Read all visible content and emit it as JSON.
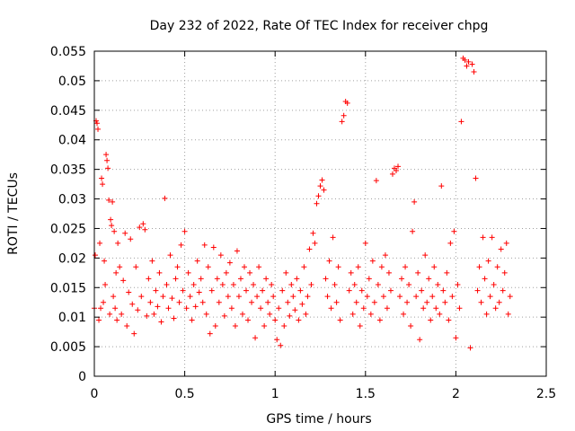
{
  "chart_data": {
    "type": "scatter",
    "title": "Day 232 of 2022, Rate Of TEC Index for receiver chpg",
    "xlabel": "GPS time / hours",
    "ylabel": "ROTI / TECUs",
    "xlim": [
      0,
      2.5
    ],
    "ylim": [
      0,
      0.055
    ],
    "x_ticks": [
      0,
      0.5,
      1,
      1.5,
      2,
      2.5
    ],
    "y_ticks": [
      0,
      0.005,
      0.01,
      0.015,
      0.02,
      0.025,
      0.03,
      0.035,
      0.04,
      0.045,
      0.05,
      0.055
    ],
    "x_tick_labels": [
      "0",
      "0.5",
      "1",
      "1.5",
      "2",
      "2.5"
    ],
    "y_tick_labels": [
      "0",
      "0.005",
      "0.01",
      "0.015",
      "0.02",
      "0.025",
      "0.03",
      "0.035",
      "0.04",
      "0.045",
      "0.05",
      "0.055"
    ],
    "grid": true,
    "marker": "+",
    "marker_color": "#ff0000",
    "series": [
      {
        "points": [
          [
            0.0,
            0.0115
          ],
          [
            0.005,
            0.0205
          ],
          [
            0.01,
            0.0432
          ],
          [
            0.015,
            0.0428
          ],
          [
            0.02,
            0.0418
          ],
          [
            0.025,
            0.0095
          ],
          [
            0.03,
            0.0225
          ],
          [
            0.035,
            0.0115
          ],
          [
            0.04,
            0.0335
          ],
          [
            0.045,
            0.0325
          ],
          [
            0.05,
            0.0125
          ],
          [
            0.055,
            0.0195
          ],
          [
            0.06,
            0.0155
          ],
          [
            0.065,
            0.0375
          ],
          [
            0.07,
            0.0365
          ],
          [
            0.075,
            0.0352
          ],
          [
            0.08,
            0.0298
          ],
          [
            0.085,
            0.0105
          ],
          [
            0.09,
            0.0265
          ],
          [
            0.095,
            0.0255
          ],
          [
            0.1,
            0.0295
          ],
          [
            0.105,
            0.0135
          ],
          [
            0.11,
            0.0245
          ],
          [
            0.115,
            0.0115
          ],
          [
            0.12,
            0.0175
          ],
          [
            0.125,
            0.0095
          ],
          [
            0.13,
            0.0225
          ],
          [
            0.14,
            0.0185
          ],
          [
            0.15,
            0.0105
          ],
          [
            0.16,
            0.0162
          ],
          [
            0.17,
            0.0242
          ],
          [
            0.18,
            0.0085
          ],
          [
            0.19,
            0.0142
          ],
          [
            0.2,
            0.0232
          ],
          [
            0.21,
            0.0122
          ],
          [
            0.22,
            0.0072
          ],
          [
            0.23,
            0.0185
          ],
          [
            0.24,
            0.0112
          ],
          [
            0.25,
            0.0252
          ],
          [
            0.26,
            0.0135
          ],
          [
            0.27,
            0.0258
          ],
          [
            0.28,
            0.0248
          ],
          [
            0.29,
            0.0102
          ],
          [
            0.3,
            0.0165
          ],
          [
            0.31,
            0.0125
          ],
          [
            0.32,
            0.0195
          ],
          [
            0.33,
            0.0105
          ],
          [
            0.34,
            0.0145
          ],
          [
            0.35,
            0.0118
          ],
          [
            0.36,
            0.0175
          ],
          [
            0.37,
            0.0092
          ],
          [
            0.38,
            0.0135
          ],
          [
            0.39,
            0.0301
          ],
          [
            0.4,
            0.0155
          ],
          [
            0.41,
            0.0115
          ],
          [
            0.42,
            0.0205
          ],
          [
            0.43,
            0.0132
          ],
          [
            0.44,
            0.0098
          ],
          [
            0.45,
            0.0165
          ],
          [
            0.46,
            0.0185
          ],
          [
            0.47,
            0.0125
          ],
          [
            0.48,
            0.0222
          ],
          [
            0.49,
            0.0145
          ],
          [
            0.5,
            0.0245
          ],
          [
            0.51,
            0.0115
          ],
          [
            0.52,
            0.0175
          ],
          [
            0.53,
            0.0135
          ],
          [
            0.54,
            0.0095
          ],
          [
            0.55,
            0.0155
          ],
          [
            0.56,
            0.0118
          ],
          [
            0.57,
            0.0195
          ],
          [
            0.58,
            0.0142
          ],
          [
            0.59,
            0.0165
          ],
          [
            0.6,
            0.0125
          ],
          [
            0.61,
            0.0222
          ],
          [
            0.62,
            0.0105
          ],
          [
            0.63,
            0.0185
          ],
          [
            0.64,
            0.0072
          ],
          [
            0.65,
            0.0145
          ],
          [
            0.66,
            0.0218
          ],
          [
            0.67,
            0.0085
          ],
          [
            0.68,
            0.0165
          ],
          [
            0.69,
            0.0125
          ],
          [
            0.7,
            0.0205
          ],
          [
            0.71,
            0.0155
          ],
          [
            0.72,
            0.0102
          ],
          [
            0.73,
            0.0175
          ],
          [
            0.74,
            0.0135
          ],
          [
            0.75,
            0.0192
          ],
          [
            0.76,
            0.0115
          ],
          [
            0.77,
            0.0155
          ],
          [
            0.78,
            0.0085
          ],
          [
            0.79,
            0.0212
          ],
          [
            0.8,
            0.0135
          ],
          [
            0.81,
            0.0165
          ],
          [
            0.82,
            0.0105
          ],
          [
            0.83,
            0.0185
          ],
          [
            0.84,
            0.0145
          ],
          [
            0.85,
            0.0095
          ],
          [
            0.86,
            0.0175
          ],
          [
            0.87,
            0.0125
          ],
          [
            0.88,
            0.0155
          ],
          [
            0.89,
            0.0065
          ],
          [
            0.9,
            0.0135
          ],
          [
            0.91,
            0.0185
          ],
          [
            0.92,
            0.0115
          ],
          [
            0.93,
            0.0145
          ],
          [
            0.94,
            0.0085
          ],
          [
            0.95,
            0.0165
          ],
          [
            0.96,
            0.0125
          ],
          [
            0.97,
            0.0105
          ],
          [
            0.98,
            0.0155
          ],
          [
            0.99,
            0.0135
          ],
          [
            1.0,
            0.0095
          ],
          [
            1.01,
            0.0062
          ],
          [
            1.02,
            0.0115
          ],
          [
            1.03,
            0.0052
          ],
          [
            1.04,
            0.0145
          ],
          [
            1.05,
            0.0085
          ],
          [
            1.06,
            0.0175
          ],
          [
            1.07,
            0.0125
          ],
          [
            1.08,
            0.0102
          ],
          [
            1.09,
            0.0155
          ],
          [
            1.1,
            0.0135
          ],
          [
            1.11,
            0.0112
          ],
          [
            1.12,
            0.0165
          ],
          [
            1.13,
            0.0095
          ],
          [
            1.14,
            0.0145
          ],
          [
            1.15,
            0.0122
          ],
          [
            1.16,
            0.0185
          ],
          [
            1.17,
            0.0105
          ],
          [
            1.18,
            0.0135
          ],
          [
            1.19,
            0.0215
          ],
          [
            1.2,
            0.0155
          ],
          [
            1.21,
            0.0242
          ],
          [
            1.22,
            0.0225
          ],
          [
            1.23,
            0.0292
          ],
          [
            1.24,
            0.0305
          ],
          [
            1.25,
            0.0322
          ],
          [
            1.26,
            0.0332
          ],
          [
            1.27,
            0.0315
          ],
          [
            1.28,
            0.0165
          ],
          [
            1.29,
            0.0135
          ],
          [
            1.3,
            0.0195
          ],
          [
            1.31,
            0.0115
          ],
          [
            1.32,
            0.0235
          ],
          [
            1.33,
            0.0155
          ],
          [
            1.34,
            0.0125
          ],
          [
            1.35,
            0.0185
          ],
          [
            1.36,
            0.0095
          ],
          [
            1.37,
            0.0431
          ],
          [
            1.38,
            0.0441
          ],
          [
            1.39,
            0.0465
          ],
          [
            1.4,
            0.0462
          ],
          [
            1.41,
            0.0145
          ],
          [
            1.42,
            0.0175
          ],
          [
            1.43,
            0.0105
          ],
          [
            1.44,
            0.0155
          ],
          [
            1.45,
            0.0125
          ],
          [
            1.46,
            0.0185
          ],
          [
            1.47,
            0.0085
          ],
          [
            1.48,
            0.0145
          ],
          [
            1.49,
            0.0115
          ],
          [
            1.5,
            0.0225
          ],
          [
            1.51,
            0.0135
          ],
          [
            1.52,
            0.0165
          ],
          [
            1.53,
            0.0105
          ],
          [
            1.54,
            0.0195
          ],
          [
            1.55,
            0.0125
          ],
          [
            1.56,
            0.0331
          ],
          [
            1.57,
            0.0155
          ],
          [
            1.58,
            0.0095
          ],
          [
            1.59,
            0.0185
          ],
          [
            1.6,
            0.0135
          ],
          [
            1.61,
            0.0205
          ],
          [
            1.62,
            0.0115
          ],
          [
            1.63,
            0.0175
          ],
          [
            1.64,
            0.0145
          ],
          [
            1.65,
            0.0342
          ],
          [
            1.66,
            0.0352
          ],
          [
            1.67,
            0.0348
          ],
          [
            1.68,
            0.0355
          ],
          [
            1.69,
            0.0135
          ],
          [
            1.7,
            0.0165
          ],
          [
            1.71,
            0.0105
          ],
          [
            1.72,
            0.0185
          ],
          [
            1.73,
            0.0125
          ],
          [
            1.74,
            0.0155
          ],
          [
            1.75,
            0.0085
          ],
          [
            1.76,
            0.0245
          ],
          [
            1.77,
            0.0295
          ],
          [
            1.78,
            0.0135
          ],
          [
            1.79,
            0.0175
          ],
          [
            1.8,
            0.0062
          ],
          [
            1.81,
            0.0145
          ],
          [
            1.82,
            0.0115
          ],
          [
            1.83,
            0.0205
          ],
          [
            1.84,
            0.0125
          ],
          [
            1.85,
            0.0165
          ],
          [
            1.86,
            0.0095
          ],
          [
            1.87,
            0.0135
          ],
          [
            1.88,
            0.0185
          ],
          [
            1.89,
            0.0115
          ],
          [
            1.9,
            0.0155
          ],
          [
            1.91,
            0.0105
          ],
          [
            1.92,
            0.0322
          ],
          [
            1.93,
            0.0145
          ],
          [
            1.94,
            0.0125
          ],
          [
            1.95,
            0.0175
          ],
          [
            1.96,
            0.0095
          ],
          [
            1.97,
            0.0225
          ],
          [
            1.98,
            0.0135
          ],
          [
            1.99,
            0.0245
          ],
          [
            2.0,
            0.0065
          ],
          [
            2.01,
            0.0155
          ],
          [
            2.02,
            0.0115
          ],
          [
            2.03,
            0.0431
          ],
          [
            2.04,
            0.0538
          ],
          [
            2.05,
            0.0535
          ],
          [
            2.06,
            0.0525
          ],
          [
            2.07,
            0.0532
          ],
          [
            2.08,
            0.0048
          ],
          [
            2.09,
            0.0528
          ],
          [
            2.1,
            0.0515
          ],
          [
            2.11,
            0.0335
          ],
          [
            2.12,
            0.0145
          ],
          [
            2.13,
            0.0185
          ],
          [
            2.14,
            0.0125
          ],
          [
            2.15,
            0.0235
          ],
          [
            2.16,
            0.0165
          ],
          [
            2.17,
            0.0105
          ],
          [
            2.18,
            0.0195
          ],
          [
            2.19,
            0.0135
          ],
          [
            2.2,
            0.0235
          ],
          [
            2.21,
            0.0155
          ],
          [
            2.22,
            0.0115
          ],
          [
            2.23,
            0.0185
          ],
          [
            2.24,
            0.0125
          ],
          [
            2.25,
            0.0215
          ],
          [
            2.26,
            0.0145
          ],
          [
            2.27,
            0.0175
          ],
          [
            2.28,
            0.0225
          ],
          [
            2.29,
            0.0105
          ],
          [
            2.3,
            0.0135
          ]
        ]
      }
    ]
  }
}
